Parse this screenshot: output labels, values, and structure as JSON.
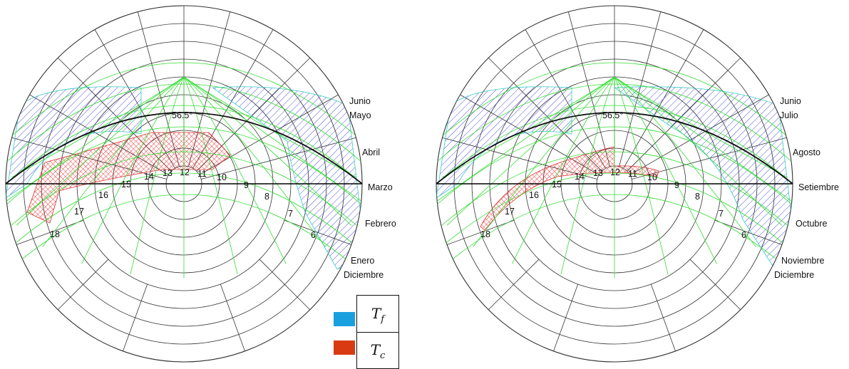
{
  "colors": {
    "cold": "#1aa0de",
    "hot": "#d93a12",
    "cold_hatch": "#3f3fd6",
    "hot_hatch": "#e03030",
    "band_edge": "#22c2c2",
    "green_line": "#33dd33"
  },
  "diagrams": [
    {
      "id": "left",
      "elevation_label": "56.5°",
      "months": [
        "Junio",
        "Mayo",
        "Abril",
        "Marzo",
        "Febrero",
        "Enero",
        "Diciembre"
      ],
      "hours": [
        "18",
        "17",
        "16",
        "15",
        "14",
        "13",
        "12",
        "11",
        "10",
        "9",
        "8",
        "7",
        "6"
      ]
    },
    {
      "id": "right",
      "elevation_label": "56.5°",
      "months": [
        "Junio",
        "Julio",
        "Agosto",
        "Setiembre",
        "Octubre",
        "Noviembre",
        "Diciembre"
      ],
      "hours": [
        "18",
        "17",
        "16",
        "15",
        "14",
        "13",
        "12",
        "11",
        "10",
        "9",
        "8",
        "7",
        "6"
      ]
    }
  ],
  "legend": {
    "items": [
      {
        "symbol": "T",
        "sub": "f",
        "color_key": "cold"
      },
      {
        "symbol": "T",
        "sub": "c",
        "color_key": "hot"
      }
    ]
  }
}
